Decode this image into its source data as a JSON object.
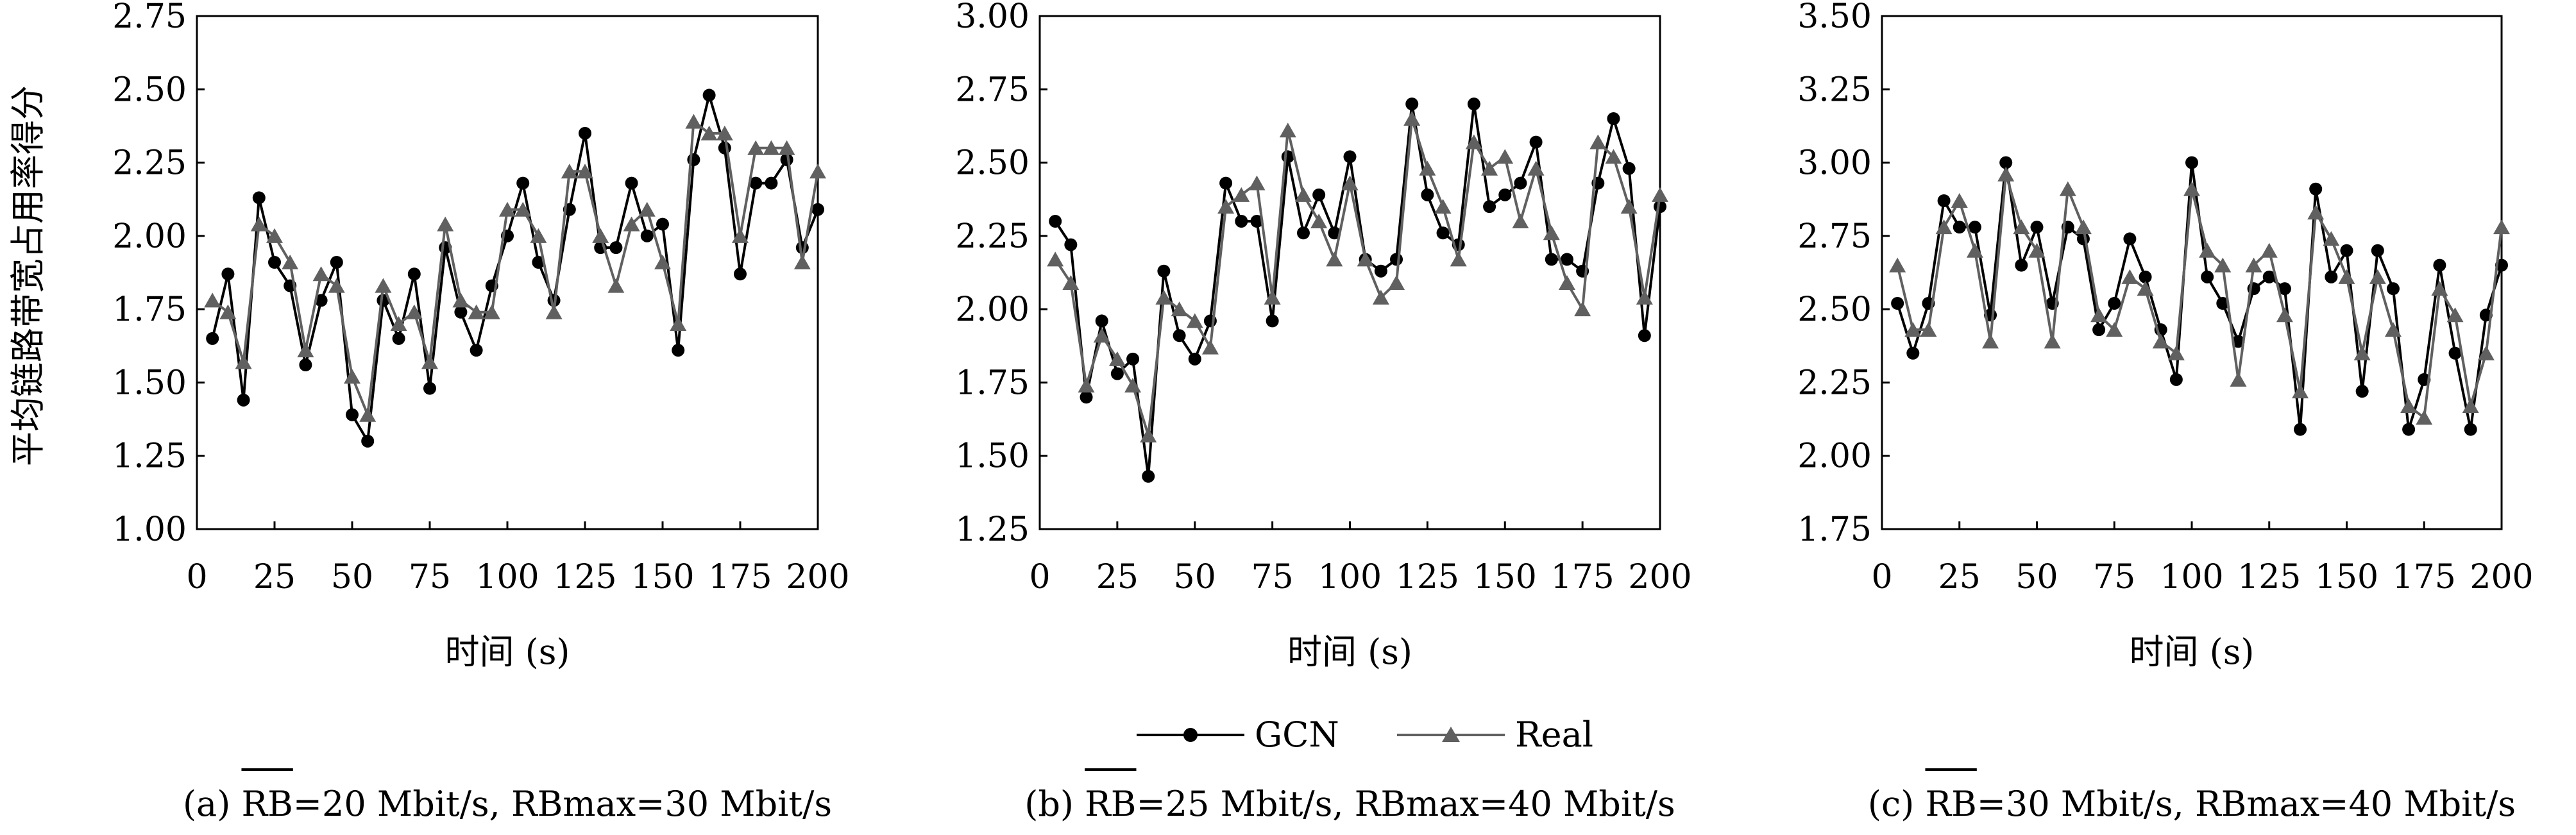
{
  "ylabel": "平均链路带宽占用率得分",
  "xlabel": "时间 (s)",
  "legend": {
    "gcn": "GCN",
    "real": "Real",
    "placement": "bottom-center"
  },
  "colors": {
    "gcn": "#000000",
    "real": "#606060"
  },
  "chart_data": [
    {
      "type": "line",
      "caption": "(a) RB=20 Mbit/s, RBmax=30 Mbit/s",
      "xlabel": "时间 (s)",
      "ylabel": "平均链路带宽占用率得分",
      "xlim": [
        0,
        200
      ],
      "ylim": [
        1.0,
        2.75
      ],
      "xticks": [
        "0",
        "25",
        "50",
        "75",
        "100",
        "125",
        "150",
        "175",
        "200"
      ],
      "yticks": [
        "1.00",
        "1.25",
        "1.50",
        "1.75",
        "2.00",
        "2.25",
        "2.50",
        "2.75"
      ],
      "x": [
        5,
        10,
        15,
        20,
        25,
        30,
        35,
        40,
        45,
        50,
        55,
        60,
        65,
        70,
        75,
        80,
        85,
        90,
        95,
        100,
        105,
        110,
        115,
        120,
        125,
        130,
        135,
        140,
        145,
        150,
        155,
        160,
        165,
        170,
        175,
        180,
        185,
        190,
        195,
        200
      ],
      "series": [
        {
          "name": "GCN",
          "values": [
            1.65,
            1.87,
            1.44,
            2.13,
            1.91,
            1.83,
            1.56,
            1.78,
            1.91,
            1.39,
            1.3,
            1.78,
            1.65,
            1.87,
            1.48,
            1.96,
            1.74,
            1.61,
            1.83,
            2.0,
            2.18,
            1.91,
            1.78,
            2.09,
            2.35,
            1.96,
            1.96,
            2.18,
            2.0,
            2.04,
            1.61,
            2.26,
            2.48,
            2.3,
            1.87,
            2.18,
            2.18,
            2.26,
            1.96,
            2.09
          ]
        },
        {
          "name": "Real",
          "values": [
            1.78,
            1.74,
            1.57,
            2.04,
            2.0,
            1.91,
            1.61,
            1.87,
            1.83,
            1.52,
            1.39,
            1.83,
            1.7,
            1.74,
            1.57,
            2.04,
            1.78,
            1.74,
            1.74,
            2.09,
            2.09,
            2.0,
            1.74,
            2.22,
            2.22,
            2.0,
            1.83,
            2.04,
            2.09,
            1.91,
            1.7,
            2.39,
            2.35,
            2.35,
            2.0,
            2.3,
            2.3,
            2.3,
            1.91,
            2.22
          ]
        }
      ]
    },
    {
      "type": "line",
      "caption": "(b) RB=25 Mbit/s, RBmax=40 Mbit/s",
      "xlabel": "时间 (s)",
      "ylabel": "",
      "xlim": [
        0,
        200
      ],
      "ylim": [
        1.25,
        3.0
      ],
      "xticks": [
        "0",
        "25",
        "50",
        "75",
        "100",
        "125",
        "150",
        "175",
        "200"
      ],
      "yticks": [
        "1.25",
        "1.50",
        "1.75",
        "2.00",
        "2.25",
        "2.50",
        "2.75",
        "3.00"
      ],
      "x": [
        5,
        10,
        15,
        20,
        25,
        30,
        35,
        40,
        45,
        50,
        55,
        60,
        65,
        70,
        75,
        80,
        85,
        90,
        95,
        100,
        105,
        110,
        115,
        120,
        125,
        130,
        135,
        140,
        145,
        150,
        155,
        160,
        165,
        170,
        175,
        180,
        185,
        190,
        195,
        200
      ],
      "series": [
        {
          "name": "GCN",
          "values": [
            2.3,
            2.22,
            1.7,
            1.96,
            1.78,
            1.83,
            1.43,
            2.13,
            1.91,
            1.83,
            1.96,
            2.43,
            2.3,
            2.3,
            1.96,
            2.52,
            2.26,
            2.39,
            2.26,
            2.52,
            2.17,
            2.13,
            2.17,
            2.7,
            2.39,
            2.26,
            2.22,
            2.7,
            2.35,
            2.39,
            2.43,
            2.57,
            2.17,
            2.17,
            2.13,
            2.43,
            2.65,
            2.48,
            1.91,
            2.35
          ]
        },
        {
          "name": "Real",
          "values": [
            2.17,
            2.09,
            1.74,
            1.91,
            1.83,
            1.74,
            1.57,
            2.04,
            2.0,
            1.96,
            1.87,
            2.35,
            2.39,
            2.43,
            2.04,
            2.61,
            2.39,
            2.3,
            2.17,
            2.43,
            2.17,
            2.04,
            2.09,
            2.65,
            2.48,
            2.35,
            2.17,
            2.57,
            2.48,
            2.52,
            2.3,
            2.48,
            2.26,
            2.09,
            2.0,
            2.57,
            2.52,
            2.35,
            2.04,
            2.39
          ]
        }
      ]
    },
    {
      "type": "line",
      "caption": "(c) RB=30 Mbit/s, RBmax=40 Mbit/s",
      "xlabel": "时间 (s)",
      "ylabel": "",
      "xlim": [
        0,
        200
      ],
      "ylim": [
        1.75,
        3.5
      ],
      "xticks": [
        "0",
        "25",
        "50",
        "75",
        "100",
        "125",
        "150",
        "175",
        "200"
      ],
      "yticks": [
        "1.75",
        "2.00",
        "2.25",
        "2.50",
        "2.75",
        "3.00",
        "3.25",
        "3.50"
      ],
      "x": [
        5,
        10,
        15,
        20,
        25,
        30,
        35,
        40,
        45,
        50,
        55,
        60,
        65,
        70,
        75,
        80,
        85,
        90,
        95,
        100,
        105,
        110,
        115,
        120,
        125,
        130,
        135,
        140,
        145,
        150,
        155,
        160,
        165,
        170,
        175,
        180,
        185,
        190,
        195,
        200
      ],
      "series": [
        {
          "name": "GCN",
          "values": [
            2.52,
            2.35,
            2.52,
            2.87,
            2.78,
            2.78,
            2.48,
            3.0,
            2.65,
            2.78,
            2.52,
            2.78,
            2.74,
            2.43,
            2.52,
            2.74,
            2.61,
            2.43,
            2.26,
            3.0,
            2.61,
            2.52,
            2.39,
            2.57,
            2.61,
            2.57,
            2.09,
            2.91,
            2.61,
            2.7,
            2.22,
            2.7,
            2.57,
            2.09,
            2.26,
            2.65,
            2.35,
            2.09,
            2.48,
            2.65
          ]
        },
        {
          "name": "Real",
          "values": [
            2.65,
            2.43,
            2.43,
            2.78,
            2.87,
            2.7,
            2.39,
            2.96,
            2.78,
            2.7,
            2.39,
            2.91,
            2.78,
            2.48,
            2.43,
            2.61,
            2.57,
            2.39,
            2.35,
            2.91,
            2.7,
            2.65,
            2.26,
            2.65,
            2.7,
            2.48,
            2.22,
            2.83,
            2.74,
            2.61,
            2.35,
            2.61,
            2.43,
            2.17,
            2.13,
            2.57,
            2.48,
            2.17,
            2.35,
            2.78
          ]
        }
      ]
    }
  ]
}
